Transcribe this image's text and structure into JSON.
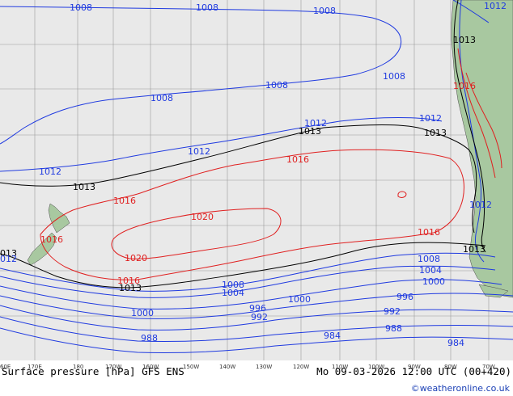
{
  "map": {
    "caption": "Surface pressure [hPa] GFS ENS",
    "run_info": "Mo 09-03-2026 12:00 UTC (00+420)",
    "copyright": "©weatheronline.co.uk",
    "colors": {
      "ocean": "#e9e9e9",
      "land": "#a8c8a0",
      "grid": "#9a9a9a",
      "isobar_low": "#1f3ae0",
      "isobar_mid": "#000000",
      "isobar_high": "#e02020"
    },
    "longitude_labels": [
      "60E",
      "170E",
      "180",
      "170W",
      "160W",
      "150W",
      "140W",
      "130W",
      "120W",
      "110W",
      "100W",
      "90W",
      "80W",
      "70W"
    ],
    "isobar_labels": [
      {
        "text": "1008",
        "level": "low"
      },
      {
        "text": "1008",
        "level": "low"
      },
      {
        "text": "1008",
        "level": "low"
      },
      {
        "text": "1012",
        "level": "low"
      },
      {
        "text": "1008",
        "level": "low"
      },
      {
        "text": "1008",
        "level": "low"
      },
      {
        "text": "1008",
        "level": "low"
      },
      {
        "text": "1013",
        "level": "mid"
      },
      {
        "text": "1012",
        "level": "low"
      },
      {
        "text": "1012",
        "level": "low"
      },
      {
        "text": "1013",
        "level": "mid"
      },
      {
        "text": "1012",
        "level": "low"
      },
      {
        "text": "1013",
        "level": "mid"
      },
      {
        "text": "1012",
        "level": "low"
      },
      {
        "text": "1016",
        "level": "high"
      },
      {
        "text": "1016",
        "level": "high"
      },
      {
        "text": "1013",
        "level": "mid"
      },
      {
        "text": "1016",
        "level": "high"
      },
      {
        "text": "1012",
        "level": "low"
      },
      {
        "text": "1020",
        "level": "high"
      },
      {
        "text": "1016",
        "level": "high"
      },
      {
        "text": "1016",
        "level": "high"
      },
      {
        "text": "013",
        "level": "mid"
      },
      {
        "text": "1013",
        "level": "mid"
      },
      {
        "text": "1020",
        "level": "high"
      },
      {
        "text": "1016",
        "level": "high"
      },
      {
        "text": "1008",
        "level": "low"
      },
      {
        "text": "1004",
        "level": "low"
      },
      {
        "text": "1000",
        "level": "low"
      },
      {
        "text": "1013",
        "level": "mid"
      },
      {
        "text": "1008",
        "level": "low"
      },
      {
        "text": "1004",
        "level": "low"
      },
      {
        "text": "1000",
        "level": "low"
      },
      {
        "text": "996",
        "level": "low"
      },
      {
        "text": "996",
        "level": "low"
      },
      {
        "text": "992",
        "level": "low"
      },
      {
        "text": "992",
        "level": "low"
      },
      {
        "text": "1000",
        "level": "low"
      },
      {
        "text": "988",
        "level": "low"
      },
      {
        "text": "984",
        "level": "low"
      },
      {
        "text": "988",
        "level": "low"
      },
      {
        "text": "984",
        "level": "low"
      },
      {
        "text": "012",
        "level": "low"
      }
    ]
  }
}
